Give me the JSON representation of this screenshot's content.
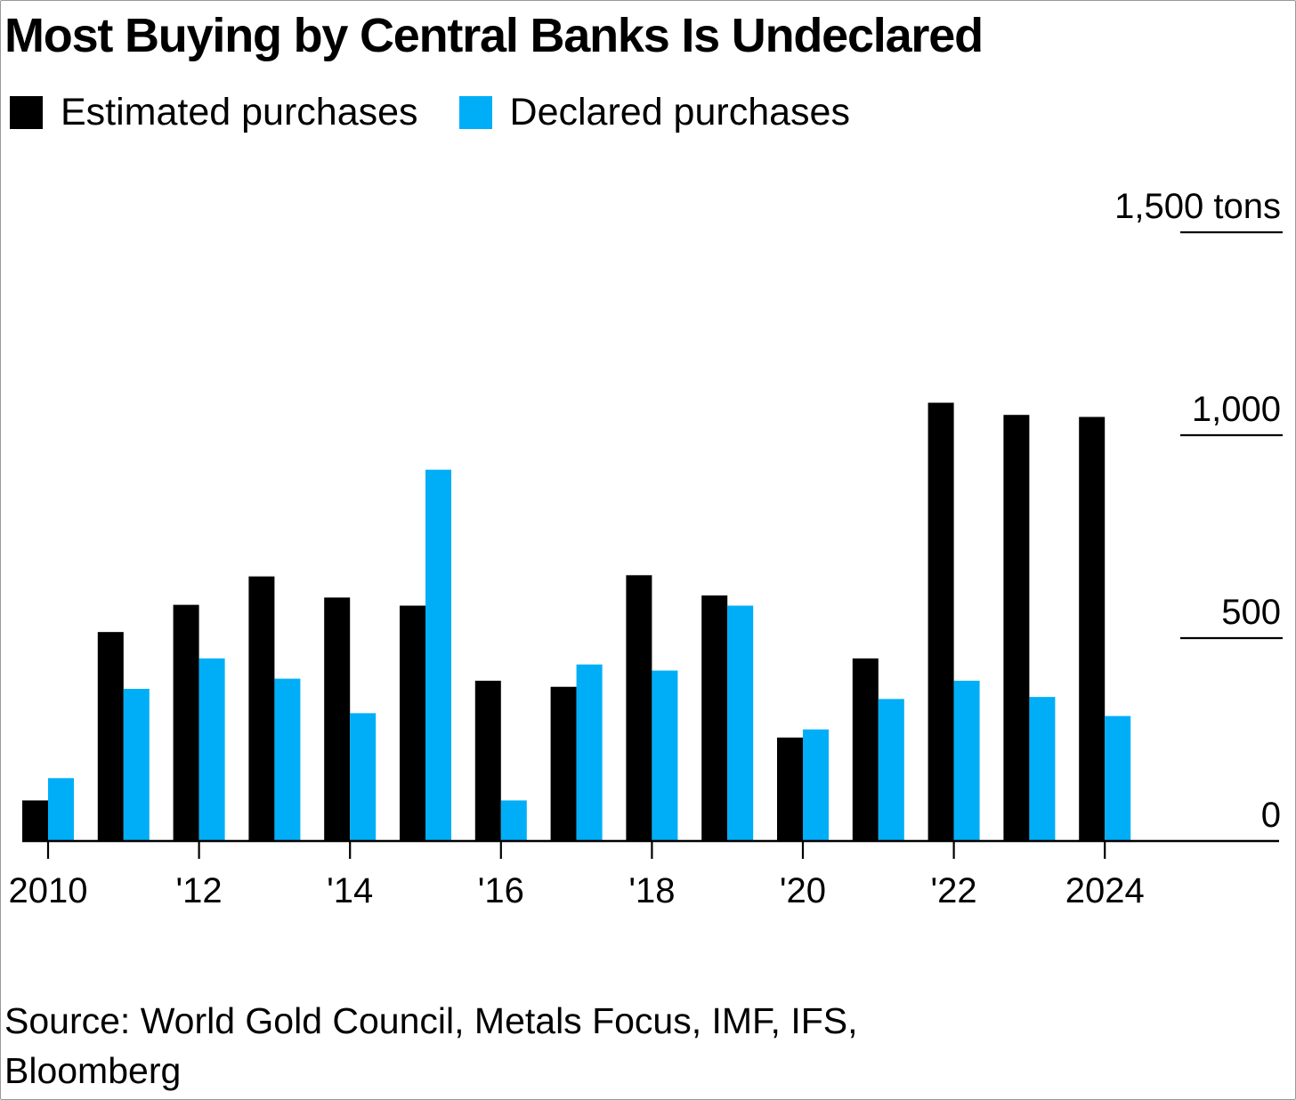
{
  "title": "Most Buying by Central Banks Is Undeclared",
  "legend": {
    "estimated_label": "Estimated purchases",
    "declared_label": "Declared purchases"
  },
  "source": {
    "line1": "Source: World Gold Council, Metals Focus, IMF, IFS,",
    "line2": "Bloomberg"
  },
  "colors": {
    "estimated": "#000000",
    "declared": "#00aef7",
    "axis": "#000000"
  },
  "chart_data": {
    "type": "bar",
    "title": "Most Buying by Central Banks Is Undeclared",
    "xlabel": "",
    "ylabel": "",
    "y_unit": "tons",
    "ylim": [
      0,
      1500
    ],
    "y_ticks": [
      0,
      500,
      1000,
      1500
    ],
    "y_tick_labels": [
      "0",
      "500",
      "1,000",
      "1,500 tons"
    ],
    "y_axis_position": "right",
    "grid": "tick marks at right only",
    "legend_position": "top-left",
    "categories": [
      "2010",
      "2011",
      "2012",
      "2013",
      "2014",
      "2015",
      "2016",
      "2017",
      "2018",
      "2019",
      "2020",
      "2021",
      "2022",
      "2023",
      "2024"
    ],
    "x_tick_labels": [
      "2010",
      "",
      "'12",
      "",
      "'14",
      "",
      "'16",
      "",
      "'18",
      "",
      "'20",
      "",
      "'22",
      "",
      "2024"
    ],
    "series": [
      {
        "name": "Estimated purchases",
        "color": "#000000",
        "values": [
          100,
          515,
          582,
          652,
          600,
          580,
          395,
          380,
          655,
          605,
          255,
          450,
          1080,
          1050,
          1045
        ]
      },
      {
        "name": "Declared purchases",
        "color": "#00aef7",
        "values": [
          155,
          375,
          450,
          400,
          315,
          915,
          100,
          435,
          420,
          580,
          275,
          350,
          395,
          355,
          308
        ]
      }
    ]
  }
}
